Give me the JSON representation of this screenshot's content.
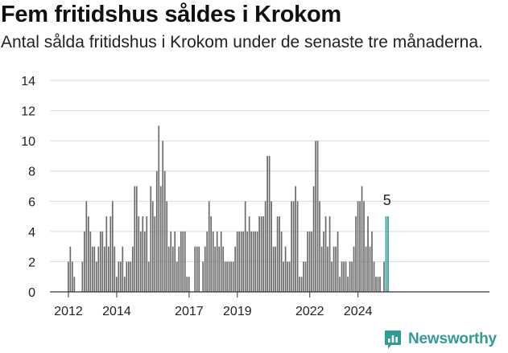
{
  "title": "Fem fritidshus såldes i Krokom",
  "subtitle": "Antal sålda fritidshus i Krokom under de senaste tre månaderna.",
  "brand": {
    "name": "Newsworthy",
    "logo_icon": "newsworthy-logo-icon"
  },
  "colors": {
    "bar": "#6b6b6e",
    "highlight": "#2a9d98",
    "grid": "#d9d9d9"
  },
  "chart_data": {
    "type": "bar",
    "title": "",
    "xlabel": "",
    "ylabel": "",
    "ylim": [
      0,
      14
    ],
    "yticks": [
      "0",
      "2",
      "4",
      "6",
      "8",
      "10",
      "12",
      "14"
    ],
    "xticks": [
      {
        "year": 2012,
        "label": "2012"
      },
      {
        "year": 2014,
        "label": "2014"
      },
      {
        "year": 2017,
        "label": "2017"
      },
      {
        "year": 2019,
        "label": "2019"
      },
      {
        "year": 2022,
        "label": "2022"
      },
      {
        "year": 2024,
        "label": "2024"
      }
    ],
    "grid": true,
    "start": "2012-01",
    "values": [
      2,
      3,
      2,
      1,
      0,
      0,
      0,
      2,
      4,
      6,
      5,
      4,
      3,
      3,
      2,
      3,
      4,
      4,
      3,
      5,
      3,
      5,
      6,
      3,
      1,
      2,
      2,
      3,
      1,
      2,
      2,
      2,
      3,
      7,
      7,
      5,
      4,
      5,
      4,
      5,
      2,
      7,
      6,
      5,
      8,
      11,
      7,
      10,
      8,
      6,
      3,
      4,
      3,
      4,
      2,
      3,
      4,
      4,
      4,
      1,
      1,
      0,
      0,
      3,
      3,
      3,
      0,
      2,
      3,
      4,
      6,
      5,
      4,
      3,
      4,
      3,
      4,
      3,
      2,
      2,
      2,
      2,
      2,
      3,
      4,
      4,
      4,
      4,
      6,
      4,
      5,
      4,
      4,
      4,
      4,
      5,
      5,
      5,
      6,
      9,
      9,
      6,
      3,
      3,
      5,
      5,
      4,
      2,
      3,
      2,
      2,
      6,
      6,
      7,
      6,
      1,
      1,
      2,
      2,
      4,
      4,
      4,
      7,
      10,
      10,
      6,
      3,
      4,
      5,
      3,
      5,
      2,
      3,
      3,
      4,
      1,
      2,
      2,
      2,
      1,
      2,
      2,
      3,
      5,
      6,
      6,
      7,
      6,
      3,
      5,
      3,
      4,
      2,
      1,
      1,
      1,
      0,
      2,
      5,
      5
    ],
    "highlight_last": true,
    "last_label": "5"
  }
}
